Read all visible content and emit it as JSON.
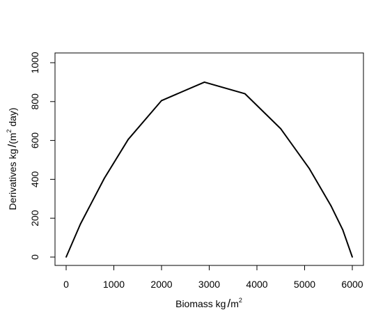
{
  "chart_data": {
    "type": "line",
    "xlabel": "Biomass kg/m²",
    "xlabel_parts": {
      "base": "Biomass kg",
      "slash": "/",
      "unit": "m",
      "sup": "2"
    },
    "ylabel": "Derivatives kg/(m² day)",
    "ylabel_parts": {
      "base": "Derivatives kg",
      "slash": "/",
      "open": "(m",
      "sup": "2",
      "close": " day)"
    },
    "xlim": [
      0,
      6000
    ],
    "ylim": [
      0,
      1000
    ],
    "xticks": [
      0,
      1000,
      2000,
      3000,
      4000,
      5000,
      6000
    ],
    "yticks": [
      0,
      200,
      400,
      600,
      800,
      1000
    ],
    "grid": false,
    "legend": "none",
    "line_color": "#000000",
    "series": [
      {
        "x": [
          0,
          300,
          800,
          1300,
          2000,
          2900,
          3750,
          4500,
          5100,
          5550,
          5800,
          6000
        ],
        "values": [
          0,
          170,
          405,
          605,
          805,
          900,
          840,
          660,
          455,
          265,
          140,
          0
        ]
      }
    ]
  }
}
